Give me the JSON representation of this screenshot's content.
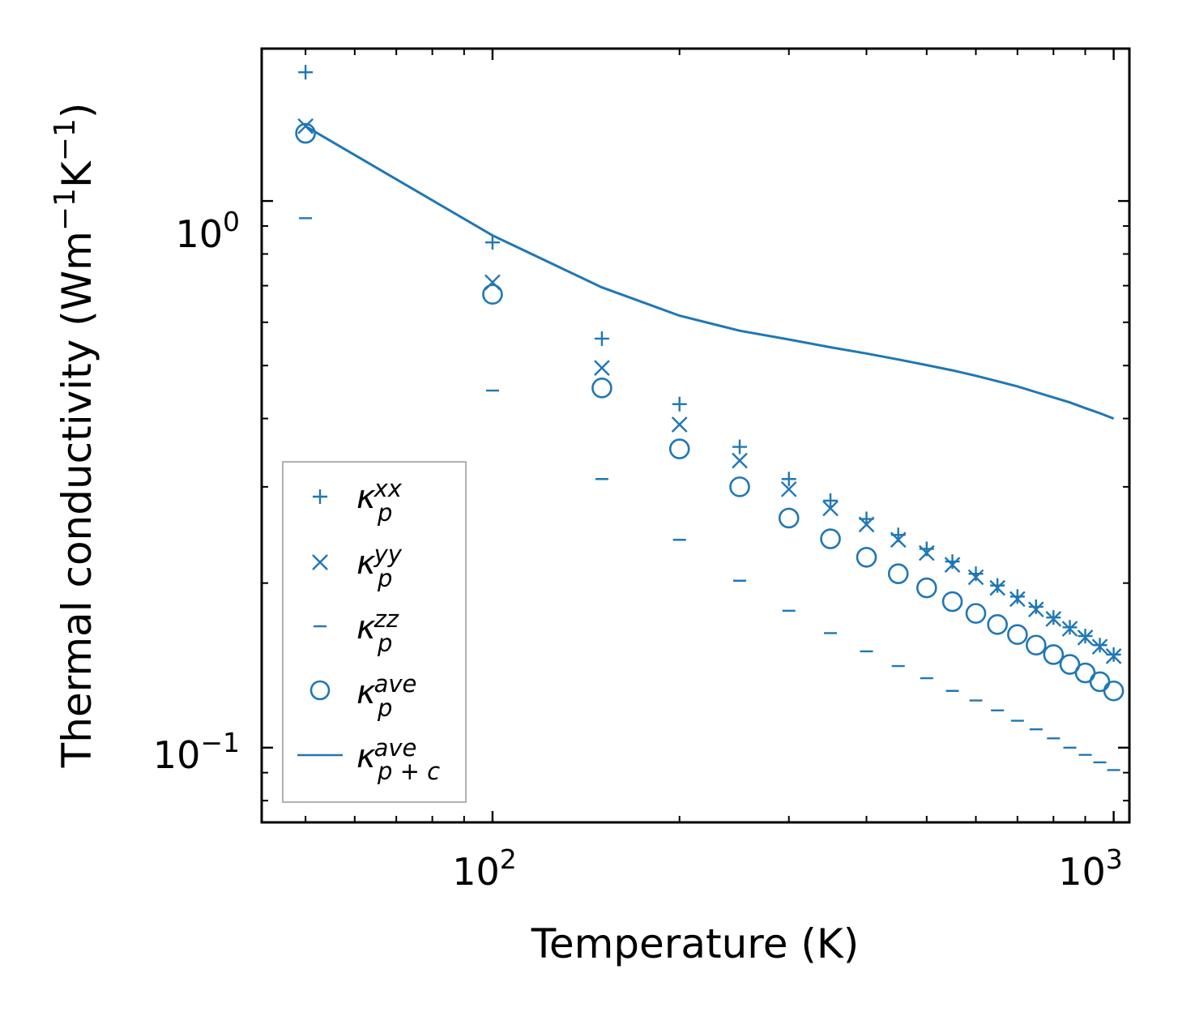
{
  "chart_data": {
    "type": "scatter",
    "title": "",
    "xlabel": "Temperature (K)",
    "ylabel": "Thermal conductivity (Wm",
    "ylabel_unit_1": "−1",
    "ylabel_unit_2": "K",
    "ylabel_unit_3": "−1",
    "ylabel_close": ")",
    "xscale": "log",
    "yscale": "log",
    "xlim": [
      42.5,
      1060
    ],
    "ylim": [
      0.073,
      1.9
    ],
    "color": "#1f77b4",
    "x_ticks": [
      {
        "base": "10",
        "exp": "2",
        "value": 100
      },
      {
        "base": "10",
        "exp": "3",
        "value": 1000
      }
    ],
    "y_ticks": [
      {
        "base": "10",
        "exp": "−1",
        "value": 0.1
      },
      {
        "base": "10",
        "exp": "0",
        "value": 1.0
      }
    ],
    "x": [
      50,
      100,
      150,
      200,
      250,
      300,
      350,
      400,
      450,
      500,
      550,
      600,
      650,
      700,
      750,
      800,
      850,
      900,
      950,
      1000
    ],
    "series": [
      {
        "name": "kp_xx",
        "marker": "+",
        "label_base": "κ",
        "label_sub": "p",
        "label_sup": "xx",
        "values": [
          1.72,
          0.84,
          0.56,
          0.425,
          0.355,
          0.31,
          0.283,
          0.262,
          0.245,
          0.231,
          0.219,
          0.208,
          0.198,
          0.189,
          0.181,
          0.173,
          0.166,
          0.16,
          0.154,
          0.148
        ]
      },
      {
        "name": "kp_yy",
        "marker": "x",
        "label_base": "κ",
        "label_sub": "p",
        "label_sup": "yy",
        "values": [
          1.37,
          0.71,
          0.495,
          0.39,
          0.335,
          0.297,
          0.274,
          0.256,
          0.24,
          0.227,
          0.216,
          0.205,
          0.196,
          0.187,
          0.179,
          0.172,
          0.165,
          0.159,
          0.153,
          0.147
        ]
      },
      {
        "name": "kp_zz",
        "marker": "_",
        "label_base": "κ",
        "label_sub": "p",
        "label_sup": "zz",
        "values": [
          0.93,
          0.45,
          0.31,
          0.24,
          0.202,
          0.178,
          0.162,
          0.15,
          0.141,
          0.134,
          0.127,
          0.122,
          0.117,
          0.112,
          0.108,
          0.104,
          0.1,
          0.097,
          0.094,
          0.091
        ]
      },
      {
        "name": "kp_ave",
        "marker": "o",
        "label_base": "κ",
        "label_sub": "p",
        "label_sup": "ave",
        "values": [
          1.33,
          0.675,
          0.455,
          0.352,
          0.3,
          0.263,
          0.241,
          0.223,
          0.208,
          0.196,
          0.185,
          0.176,
          0.168,
          0.161,
          0.154,
          0.148,
          0.142,
          0.137,
          0.132,
          0.127
        ]
      },
      {
        "name": "kpc_ave",
        "marker": "line",
        "label_base": "κ",
        "label_sub": "p + c",
        "label_sup": "ave",
        "values": [
          1.37,
          0.865,
          0.695,
          0.617,
          0.579,
          0.558,
          0.54,
          0.526,
          0.513,
          0.501,
          0.49,
          0.479,
          0.468,
          0.458,
          0.447,
          0.437,
          0.428,
          0.418,
          0.409,
          0.4
        ]
      }
    ],
    "legend_position": "lower-left"
  }
}
